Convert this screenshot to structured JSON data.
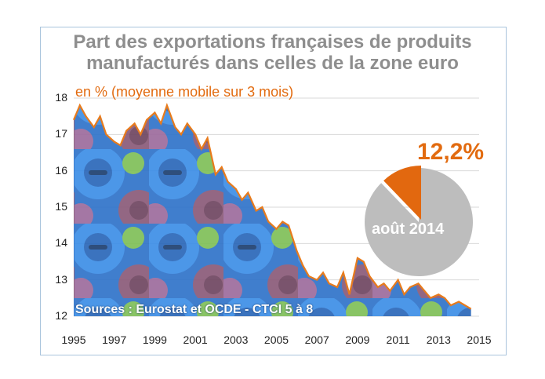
{
  "title_line1": "Part des exportations françaises de produits",
  "title_line2": "manufacturés dans celles de la zone euro",
  "subtitle": "en % (moyenne mobile sur 3 mois)",
  "source": "Sources : Eurostat et OCDE - CTCI 5 à 8",
  "pie": {
    "value_label": "12,2%",
    "date_label": "août 2014",
    "share_percent": 12.2,
    "colors": {
      "share": "#e2680f",
      "rest": "#bdbdbd"
    }
  },
  "colors": {
    "line": "#e87b1c",
    "grid": "#d9d9d9"
  },
  "chart_data": {
    "type": "line",
    "title": "Part des exportations françaises de produits manufacturés dans celles de la zone euro",
    "ylabel": "en % (moyenne mobile sur 3 mois)",
    "xlim": [
      1995,
      2015
    ],
    "ylim": [
      12,
      18
    ],
    "x_ticks": [
      "1995",
      "1997",
      "1999",
      "2001",
      "2003",
      "2005",
      "2007",
      "2009",
      "2011",
      "2013",
      "2015"
    ],
    "y_ticks": [
      "12",
      "13",
      "14",
      "15",
      "16",
      "17",
      "18"
    ],
    "grid": true,
    "series": [
      {
        "x": [
          1995.0,
          1995.3,
          1995.6,
          1996.0,
          1996.3,
          1996.6,
          1997.0,
          1997.3,
          1997.6,
          1998.0,
          1998.3,
          1998.6,
          1999.0,
          1999.3,
          1999.6,
          2000.0,
          2000.3,
          2000.6,
          2001.0,
          2001.3,
          2001.6,
          2002.0,
          2002.3,
          2002.6,
          2003.0,
          2003.3,
          2003.6,
          2004.0,
          2004.3,
          2004.6,
          2005.0,
          2005.3,
          2005.6,
          2006.0,
          2006.3,
          2006.6,
          2007.0,
          2007.3,
          2007.6,
          2008.0,
          2008.3,
          2008.6,
          2009.0,
          2009.3,
          2009.6,
          2010.0,
          2010.3,
          2010.6,
          2011.0,
          2011.3,
          2011.6,
          2012.0,
          2012.3,
          2012.6,
          2013.0,
          2013.3,
          2013.6,
          2014.0,
          2014.3,
          2014.6
        ],
        "y": [
          17.4,
          17.8,
          17.5,
          17.2,
          17.5,
          17.0,
          16.8,
          16.7,
          17.1,
          17.3,
          17.0,
          17.4,
          17.6,
          17.3,
          17.8,
          17.2,
          17.0,
          17.3,
          17.0,
          16.6,
          16.9,
          15.9,
          16.1,
          15.7,
          15.5,
          15.2,
          15.4,
          14.9,
          15.0,
          14.6,
          14.4,
          14.6,
          14.5,
          13.8,
          13.4,
          13.1,
          13.0,
          13.2,
          12.9,
          12.8,
          13.2,
          12.6,
          13.6,
          13.5,
          13.1,
          12.8,
          12.9,
          12.7,
          13.0,
          12.6,
          12.8,
          12.9,
          12.7,
          12.5,
          12.6,
          12.5,
          12.3,
          12.4,
          12.3,
          12.2
        ]
      }
    ]
  }
}
